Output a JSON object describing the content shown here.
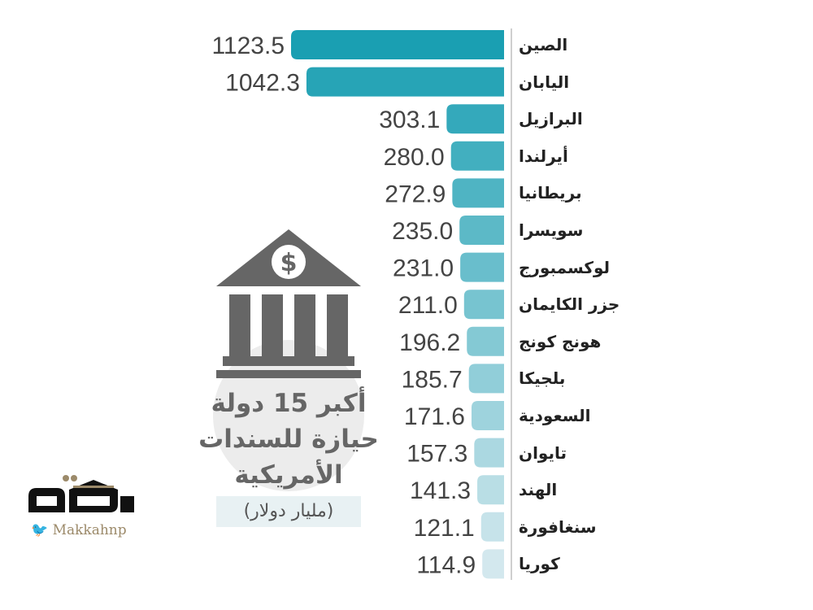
{
  "chart_data": {
    "type": "bar",
    "orientation": "horizontal",
    "title": "أكبر 15 دولة حيازة للسندات الأمريكية",
    "unit": "(مليار دولار)",
    "categories": [
      "الصين",
      "اليابان",
      "البرازيل",
      "أيرلندا",
      "بريطانيا",
      "سويسرا",
      "لوكسمبورج",
      "جزر الكايمان",
      "هونج كونج",
      "بلجيكا",
      "السعودية",
      "تايوان",
      "الهند",
      "سنغافورة",
      "كوريا"
    ],
    "values": [
      1123.5,
      1042.3,
      303.1,
      280.0,
      272.9,
      235.0,
      231.0,
      211.0,
      196.2,
      185.7,
      171.6,
      157.3,
      141.3,
      121.1,
      114.9
    ],
    "value_labels": [
      "1123.5",
      "1042.3",
      "303.1",
      "280.0",
      "272.9",
      "235.0",
      "231.0",
      "211.0",
      "196.2",
      "185.7",
      "171.6",
      "157.3",
      "141.3",
      "121.1",
      "114.9"
    ],
    "xlim": [
      0,
      1123.5
    ],
    "colors": {
      "start": "#1a9fb2",
      "end": "#d3e8ee",
      "text": "#444444",
      "label": "#222222"
    }
  },
  "branding": {
    "logo": "مكة",
    "handle": "Makkahnp"
  },
  "icons": {
    "bank": "bank-dollar-icon",
    "twitter": "twitter-icon"
  }
}
